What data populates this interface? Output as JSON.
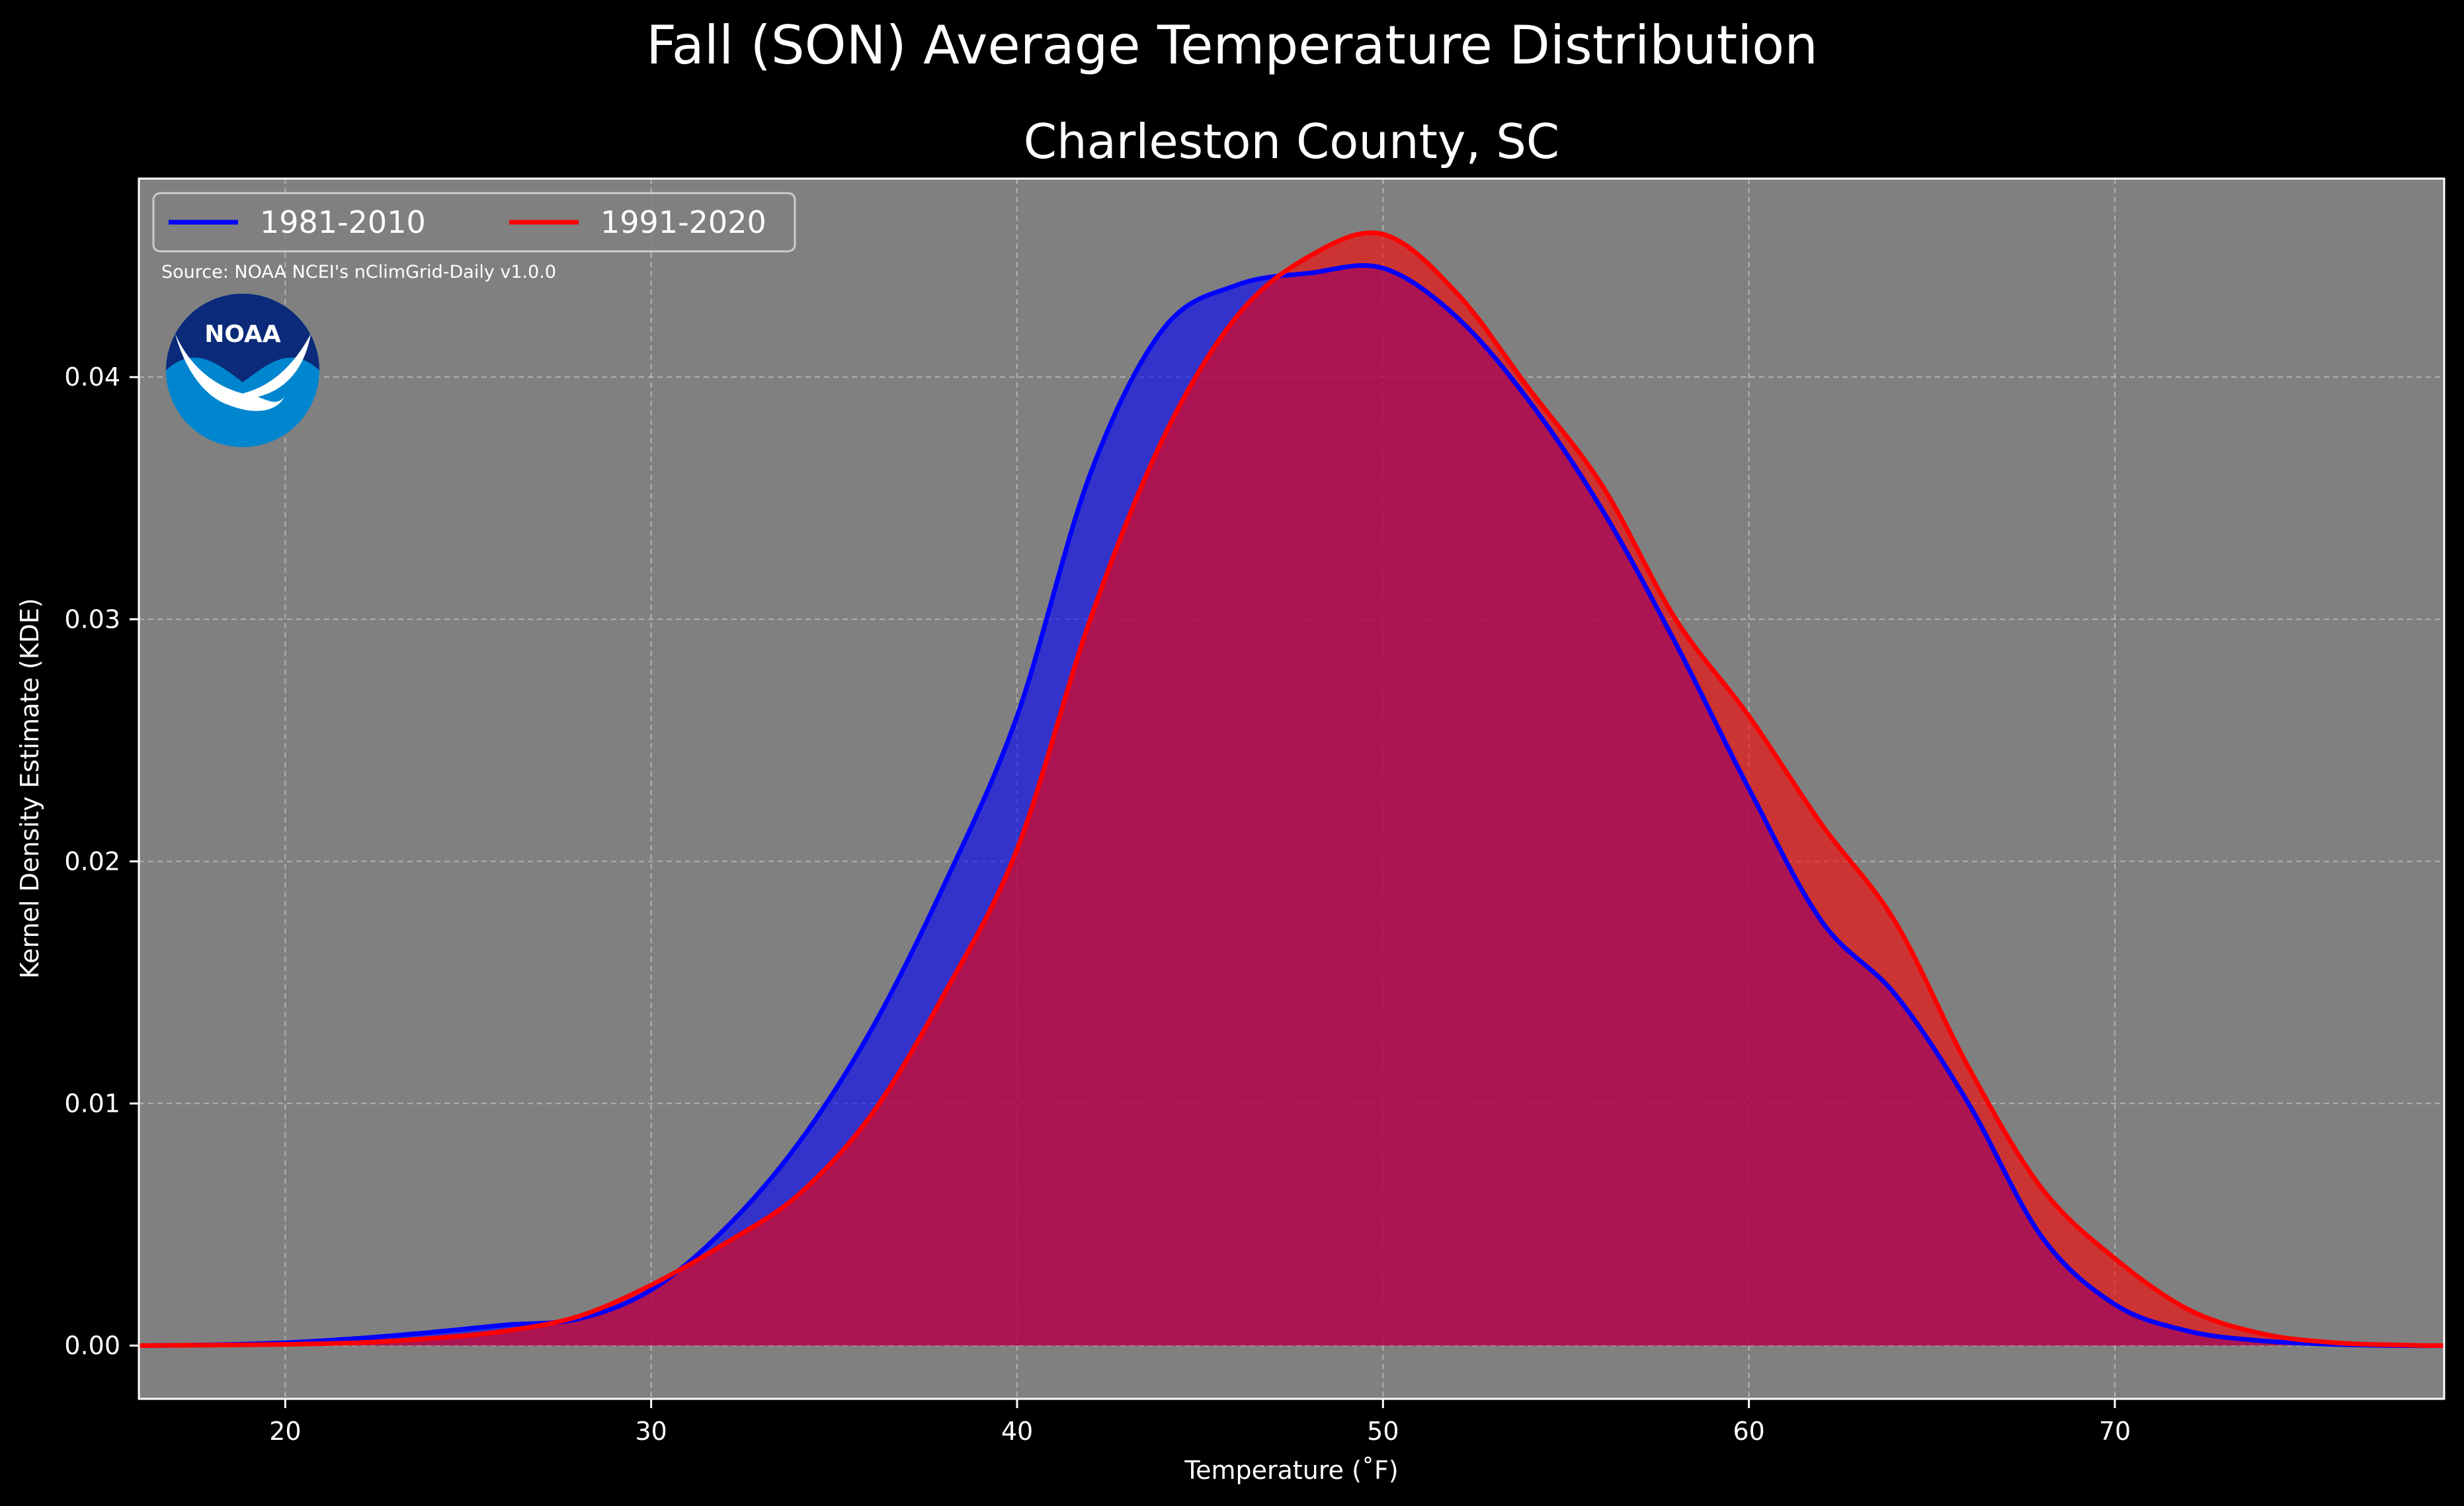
{
  "chart_data": {
    "type": "area",
    "title": "Fall (SON) Average Temperature Distribution",
    "subtitle": "Charleston County, SC",
    "xlabel": "Temperature ($^\\circ$F)",
    "xlabel_display": "Temperature (˚F)",
    "ylabel": "Kernel Density Estimate (KDE)",
    "source": "Source: NOAA NCEI's nClimGrid-Daily v1.0.0",
    "logo": {
      "name": "noaa-logo",
      "text": "NOAA"
    },
    "xlim": [
      16,
      79
    ],
    "ylim": [
      -0.0022,
      0.0482
    ],
    "xticks": [
      20,
      30,
      40,
      50,
      60,
      70
    ],
    "yticks": [
      0.0,
      0.01,
      0.02,
      0.03,
      0.04
    ],
    "ytick_labels": [
      "0.00",
      "0.01",
      "0.02",
      "0.03",
      "0.04"
    ],
    "grid": true,
    "legend": {
      "placement": "top-left",
      "columns": 2
    },
    "colors": {
      "background": "#000000",
      "axes": "#808080",
      "series_1981": "#0000ff",
      "series_1991": "#ff0000",
      "overlap": "#a11e5e"
    },
    "series": [
      {
        "name": "1981-2010",
        "color": "#0000ff",
        "x": [
          16,
          18,
          20,
          22,
          24,
          26,
          28,
          30,
          32,
          34,
          36,
          38,
          40,
          42,
          44,
          46,
          48,
          50,
          52,
          54,
          56,
          58,
          60,
          62,
          64,
          66,
          68,
          70,
          72,
          74,
          76,
          78,
          79
        ],
        "y": [
          0.0,
          3e-05,
          0.00012,
          0.0003,
          0.00055,
          0.00085,
          0.0011,
          0.0023,
          0.0048,
          0.0083,
          0.013,
          0.019,
          0.026,
          0.036,
          0.042,
          0.0438,
          0.0443,
          0.0445,
          0.0425,
          0.039,
          0.0345,
          0.029,
          0.023,
          0.0175,
          0.0145,
          0.01,
          0.0045,
          0.0017,
          0.0006,
          0.0002,
          5e-05,
          0.0,
          0.0
        ]
      },
      {
        "name": "1991-2020",
        "color": "#ff0000",
        "x": [
          16,
          18,
          20,
          22,
          24,
          26,
          28,
          30,
          32,
          34,
          36,
          38,
          40,
          42,
          44,
          46,
          48,
          50,
          52,
          54,
          56,
          58,
          60,
          62,
          64,
          66,
          68,
          70,
          72,
          74,
          76,
          78,
          79
        ],
        "y": [
          0.0,
          2e-05,
          5e-05,
          0.00012,
          0.0003,
          0.0006,
          0.0012,
          0.0025,
          0.0042,
          0.0062,
          0.0095,
          0.0145,
          0.0205,
          0.03,
          0.0375,
          0.0425,
          0.045,
          0.0459,
          0.0435,
          0.0395,
          0.0355,
          0.03,
          0.026,
          0.0215,
          0.0175,
          0.0115,
          0.0065,
          0.0036,
          0.0015,
          0.0005,
          0.00012,
          2e-05,
          0.0
        ]
      }
    ]
  }
}
